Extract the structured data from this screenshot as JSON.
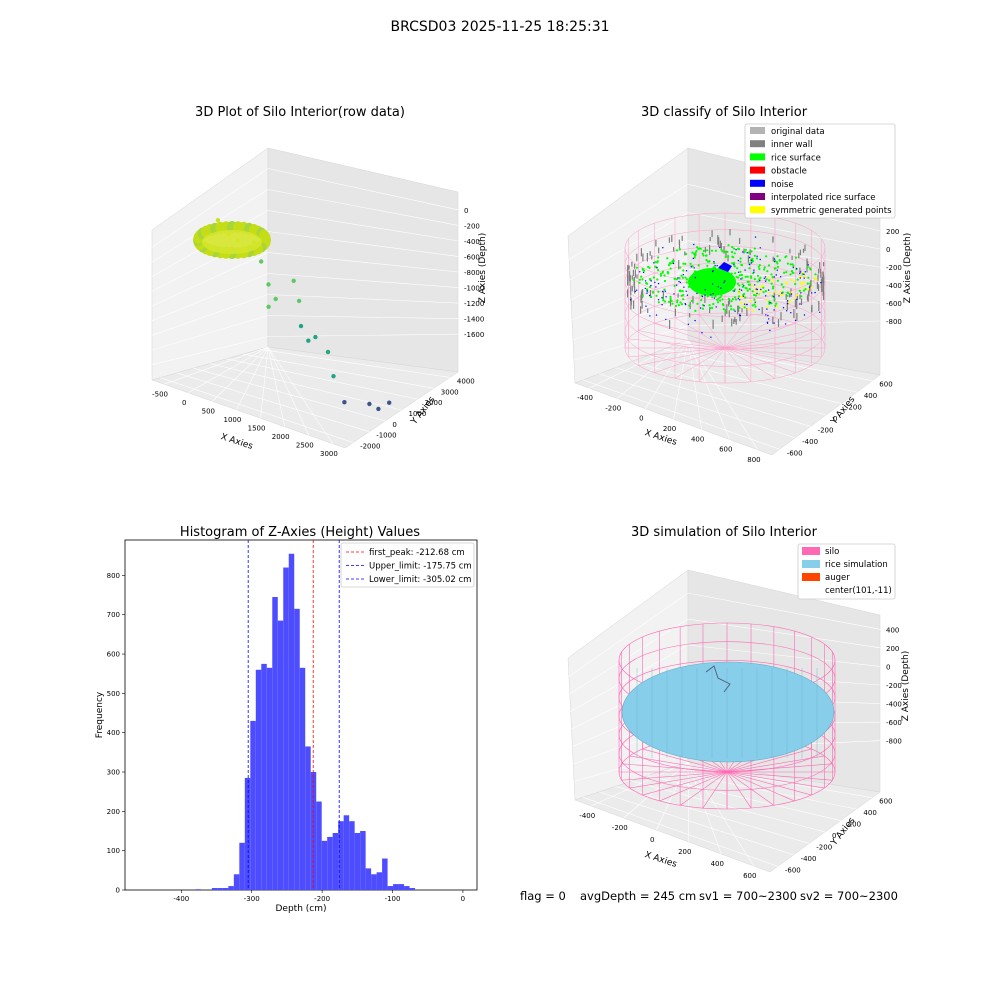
{
  "suptitle": "BRCSD03 2025-11-25 18:25:31",
  "panel1": {
    "title": "3D Plot of Silo Interior(row data)",
    "xlabel": "X Axies",
    "ylabel": "Y Axies",
    "zlabel": "Z Axies (Depth)",
    "xticks": [
      "-500",
      "0",
      "500",
      "1000",
      "1500",
      "2000",
      "2500",
      "3000"
    ],
    "yticks": [
      "-2000",
      "-1000",
      "0",
      "1000",
      "2000",
      "3000",
      "4000"
    ],
    "zticks": [
      "0",
      "-200",
      "-400",
      "-600",
      "-800",
      "-1000",
      "-1200",
      "-1400",
      "-1600"
    ]
  },
  "panel2": {
    "title": "3D classify of Silo Interior",
    "xlabel": "X Axies",
    "ylabel": "Y Axies",
    "zlabel": "Z Axies (Depth)",
    "xticks": [
      "-400",
      "-200",
      "0",
      "200",
      "400",
      "600",
      "800"
    ],
    "yticks": [
      "-600",
      "-400",
      "-200",
      "0",
      "200",
      "400",
      "600"
    ],
    "zticks": [
      "200",
      "0",
      "-200",
      "-400",
      "-600",
      "-800"
    ],
    "legend": [
      {
        "label": "original data",
        "color": "#b3b3b3"
      },
      {
        "label": "inner wall",
        "color": "#808080"
      },
      {
        "label": "rice surface",
        "color": "#00ff00"
      },
      {
        "label": "obstacle",
        "color": "#ff0000"
      },
      {
        "label": "noise",
        "color": "#0000ff"
      },
      {
        "label": "interpolated rice surface",
        "color": "#800080"
      },
      {
        "label": "symmetric generated points",
        "color": "#ffff00"
      }
    ]
  },
  "panel3": {
    "title": "Histogram of Z-Axies (Height) Values",
    "xlabel": "Depth (cm)",
    "ylabel": "Frequency",
    "legend": [
      {
        "label": "first_peak: -212.68 cm",
        "color": "#ff0000"
      },
      {
        "label": "Upper_limit: -175.75 cm",
        "color": "#0000ff"
      },
      {
        "label": "Lower_limit: -305.02 cm",
        "color": "#0000ff"
      }
    ]
  },
  "panel4": {
    "title": "3D simulation of Silo Interior",
    "xlabel": "X Axies",
    "ylabel": "Y Axies",
    "zlabel": "Z Axies (Depth)",
    "xticks": [
      "-400",
      "-200",
      "0",
      "200",
      "400",
      "600"
    ],
    "yticks": [
      "-600",
      "-400",
      "-200",
      "0",
      "200",
      "400",
      "600"
    ],
    "zticks": [
      "400",
      "200",
      "0",
      "-200",
      "-400",
      "-600",
      "-800"
    ],
    "legend": [
      {
        "label": "silo",
        "color": "#ff69b4"
      },
      {
        "label": "rice simulation",
        "color": "#87ceeb"
      },
      {
        "label": "auger",
        "color": "#ff4500"
      },
      {
        "label": "center(101,-11)",
        "color": ""
      }
    ]
  },
  "status_line": {
    "flag": "flag = 0",
    "avg": "avgDepth = 245 cm",
    "sv1": "sv1 = 700~2300",
    "sv2": "sv2 = 700~2300"
  },
  "chart_data": [
    {
      "type": "scatter",
      "title": "3D Plot of Silo Interior(row data)",
      "xlabel": "X Axies",
      "ylabel": "Y Axies",
      "zlabel": "Z Axies (Depth)",
      "xlim": [
        -600,
        3100
      ],
      "ylim": [
        -2000,
        4200
      ],
      "zlim": [
        -1700,
        100
      ],
      "series": [
        {
          "values": [
            [
              -300,
              800,
              -150
            ],
            [
              -200,
              600,
              -180
            ],
            [
              0,
              500,
              -200
            ],
            [
              200,
              400,
              -220
            ],
            [
              300,
              900,
              -160
            ],
            [
              100,
              1100,
              -170
            ],
            [
              -100,
              1000,
              -190
            ],
            [
              400,
              700,
              -250
            ],
            [
              600,
              500,
              -400
            ],
            [
              800,
              300,
              -600
            ],
            [
              1000,
              100,
              -700
            ],
            [
              900,
              0,
              -800
            ],
            [
              1200,
              500,
              -500
            ],
            [
              1400,
              200,
              -650
            ],
            [
              1500,
              0,
              -900
            ],
            [
              1700,
              -200,
              -1000
            ],
            [
              1800,
              -100,
              -950
            ],
            [
              2000,
              0,
              -1100
            ],
            [
              2200,
              -300,
              -1300
            ],
            [
              2500,
              -600,
              -1500
            ],
            [
              2700,
              200,
              -1600
            ],
            [
              2900,
              100,
              -1600
            ],
            [
              3000,
              400,
              -1550
            ]
          ]
        }
      ]
    },
    {
      "type": "scatter",
      "title": "3D classify of Silo Interior",
      "xlabel": "X Axies",
      "ylabel": "Y Axies",
      "zlabel": "Z Axies (Depth)",
      "xlim": [
        -500,
        850
      ],
      "ylim": [
        -650,
        650
      ],
      "zlim": [
        -900,
        250
      ],
      "series": [
        {
          "name": "inner wall",
          "values": [
            [
              -450,
              0,
              -150
            ],
            [
              600,
              100,
              -150
            ],
            [
              100,
              550,
              -150
            ],
            [
              100,
              -550,
              -150
            ]
          ]
        },
        {
          "name": "rice surface",
          "values": [
            [
              0,
              0,
              -120
            ],
            [
              100,
              100,
              -200
            ],
            [
              -200,
              200,
              -230
            ],
            [
              300,
              -100,
              -260
            ],
            [
              200,
              300,
              -240
            ]
          ]
        },
        {
          "name": "obstacle",
          "values": []
        },
        {
          "name": "noise",
          "values": [
            [
              50,
              50,
              -100
            ],
            [
              -300,
              -200,
              -300
            ],
            [
              400,
              300,
              -350
            ],
            [
              200,
              -400,
              -380
            ]
          ]
        },
        {
          "name": "interpolated rice surface",
          "values": []
        },
        {
          "name": "symmetric generated points",
          "values": [
            [
              350,
              -200,
              -300
            ],
            [
              400,
              -100,
              -320
            ],
            [
              300,
              -300,
              -330
            ]
          ]
        }
      ]
    },
    {
      "type": "bar",
      "title": "Histogram of Z-Axies (Height) Values",
      "xlabel": "Depth (cm)",
      "ylabel": "Frequency",
      "xlim": [
        -480,
        20
      ],
      "ylim": [
        0,
        890
      ],
      "xticks": [
        -400,
        -300,
        -200,
        -100,
        0
      ],
      "yticks": [
        0,
        100,
        200,
        300,
        400,
        500,
        600,
        700,
        800
      ],
      "bin_width": 7.8,
      "bin_start": -380,
      "values": [
        2,
        0,
        0,
        5,
        5,
        5,
        10,
        40,
        120,
        285,
        430,
        560,
        575,
        565,
        745,
        685,
        820,
        855,
        715,
        565,
        365,
        300,
        225,
        125,
        135,
        145,
        175,
        190,
        175,
        145,
        150,
        55,
        40,
        45,
        80,
        10,
        15,
        15,
        10,
        5
      ],
      "vlines": [
        {
          "label": "first_peak: -212.68 cm",
          "x": -212.68,
          "color": "#ff0000"
        },
        {
          "label": "Upper_limit: -175.75 cm",
          "x": -175.75,
          "color": "#0000ff"
        },
        {
          "label": "Lower_limit: -305.02 cm",
          "x": -305.02,
          "color": "#0000ff"
        }
      ]
    },
    {
      "type": "area",
      "title": "3D simulation of Silo Interior",
      "xlabel": "X Axies",
      "ylabel": "Y Axies",
      "zlabel": "Z Axies (Depth)",
      "xlim": [
        -500,
        700
      ],
      "ylim": [
        -650,
        650
      ],
      "zlim": [
        -900,
        450
      ],
      "series": [
        {
          "name": "silo",
          "values": []
        },
        {
          "name": "rice simulation",
          "values": []
        },
        {
          "name": "auger",
          "values": []
        },
        {
          "name": "center(101,-11)",
          "values": [
            [
              101,
              -11
            ]
          ]
        }
      ]
    }
  ]
}
